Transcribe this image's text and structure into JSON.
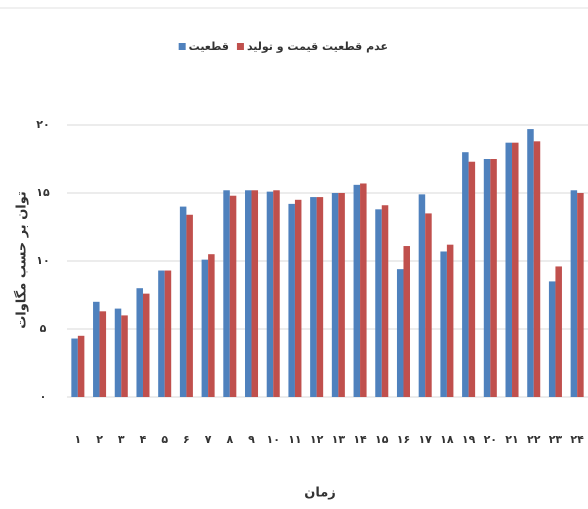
{
  "chart_data": {
    "type": "bar",
    "y_label": "توان بر حسب مگاوات",
    "x_label": "زمان",
    "categories": [
      "۱",
      "۲",
      "۳",
      "۴",
      "۵",
      "۶",
      "۷",
      "۸",
      "۹",
      "۱۰",
      "۱۱",
      "۱۲",
      "۱۳",
      "۱۴",
      "۱۵",
      "۱۶",
      "۱۷",
      "۱۸",
      "۱۹",
      "۲۰",
      "۲۱",
      "۲۲",
      "۲۳",
      "۲۴"
    ],
    "series": [
      {
        "name": "قطعیت",
        "color": "#4f81bd",
        "values": [
          4.3,
          7.0,
          6.5,
          8.0,
          9.3,
          14.0,
          10.1,
          15.2,
          15.2,
          15.1,
          14.2,
          14.7,
          15.0,
          15.6,
          13.8,
          9.4,
          14.9,
          10.7,
          18.0,
          17.5,
          18.7,
          19.7,
          8.5,
          15.2
        ]
      },
      {
        "name": "عدم قطعیت قیمت و تولید",
        "color": "#c0504d",
        "values": [
          4.5,
          6.3,
          6.0,
          7.6,
          9.3,
          13.4,
          10.5,
          14.8,
          15.2,
          15.2,
          14.5,
          14.7,
          15.0,
          15.7,
          14.1,
          11.1,
          13.5,
          11.2,
          17.3,
          17.5,
          18.7,
          18.8,
          9.6,
          15.0
        ]
      }
    ],
    "ylim": [
      0,
      20
    ],
    "yticks": [
      {
        "value": 0,
        "label": "۰"
      },
      {
        "value": 5,
        "label": "۵"
      },
      {
        "value": 10,
        "label": "۱۰"
      },
      {
        "value": 15,
        "label": "۱۵"
      },
      {
        "value": 20,
        "label": "۲۰"
      }
    ],
    "grid": true
  }
}
